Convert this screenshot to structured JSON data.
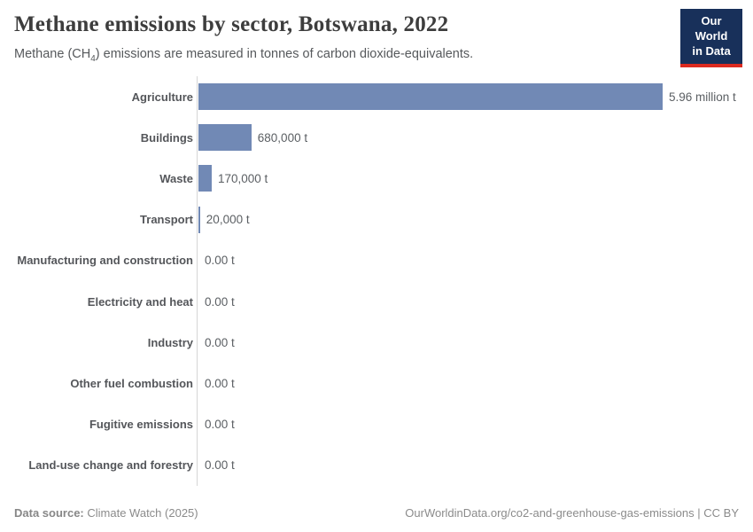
{
  "header": {
    "title": "Methane emissions by sector, Botswana, 2022",
    "subtitle_part1": "Methane (CH",
    "subtitle_sub": "4",
    "subtitle_part2": ") emissions are measured in tonnes of carbon dioxide-equivalents.",
    "logo_line1": "Our World",
    "logo_line2": "in Data"
  },
  "chart_data": {
    "type": "bar",
    "orientation": "horizontal",
    "title": "Methane emissions by sector, Botswana, 2022",
    "subtitle": "Methane (CH4) emissions are measured in tonnes of carbon dioxide-equivalents.",
    "unit": "t",
    "xlim": [
      0,
      5960000
    ],
    "grid": false,
    "bar_color": "#7189b5",
    "axis_color": "#d6d6d6",
    "categories": [
      "Agriculture",
      "Buildings",
      "Waste",
      "Transport",
      "Manufacturing and construction",
      "Electricity and heat",
      "Industry",
      "Other fuel combustion",
      "Fugitive emissions",
      "Land-use change and forestry"
    ],
    "values": [
      5960000,
      680000,
      170000,
      20000,
      0,
      0,
      0,
      0,
      0,
      0
    ],
    "value_labels": [
      "5.96 million t",
      "680,000 t",
      "170,000 t",
      "20,000 t",
      "0.00 t",
      "0.00 t",
      "0.00 t",
      "0.00 t",
      "0.00 t",
      "0.00 t"
    ]
  },
  "footer": {
    "source_label": "Data source:",
    "source_value": "Climate Watch (2025)",
    "url": "OurWorldinData.org/co2-and-greenhouse-gas-emissions",
    "separator": " | ",
    "license": "CC BY"
  }
}
